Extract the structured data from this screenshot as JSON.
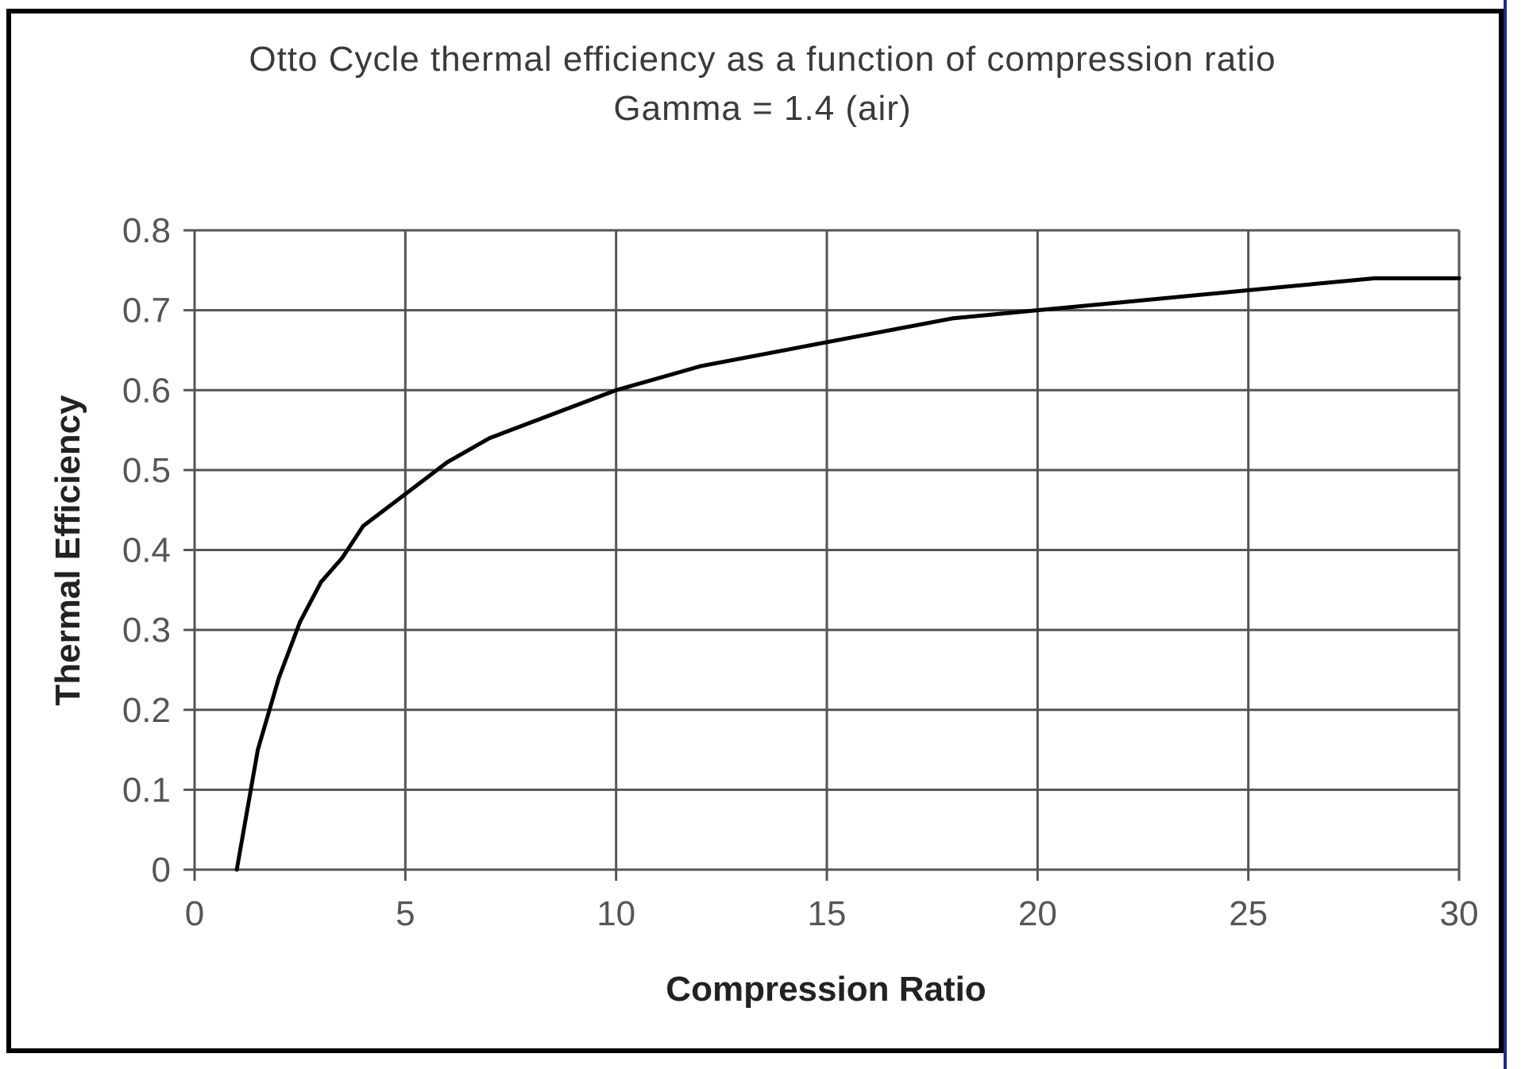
{
  "chart_data": {
    "type": "line",
    "title": "Otto Cycle thermal efficiency as a function of compression ratio",
    "subtitle": "Gamma = 1.4 (air)",
    "xlabel": "Compression Ratio",
    "ylabel": "Thermal Efficiency",
    "xlim": [
      0,
      30
    ],
    "ylim": [
      0,
      0.8
    ],
    "x_ticks": [
      "0",
      "5",
      "10",
      "15",
      "20",
      "25",
      "30"
    ],
    "y_ticks": [
      "0",
      "0.1",
      "0.2",
      "0.3",
      "0.4",
      "0.5",
      "0.6",
      "0.7",
      "0.8"
    ],
    "grid": true,
    "legend": "none",
    "line_color": "#000000",
    "series": [
      {
        "x": [
          1,
          1.5,
          2,
          2.5,
          3,
          3.5,
          4,
          5,
          6,
          7,
          8,
          9,
          10,
          12,
          14,
          16,
          18,
          20,
          22,
          24,
          26,
          28,
          30
        ],
        "y": [
          0,
          0.15,
          0.24,
          0.31,
          0.36,
          0.39,
          0.43,
          0.47,
          0.51,
          0.54,
          0.56,
          0.58,
          0.6,
          0.63,
          0.65,
          0.67,
          0.69,
          0.7,
          0.71,
          0.72,
          0.73,
          0.74,
          0.74
        ]
      }
    ]
  }
}
